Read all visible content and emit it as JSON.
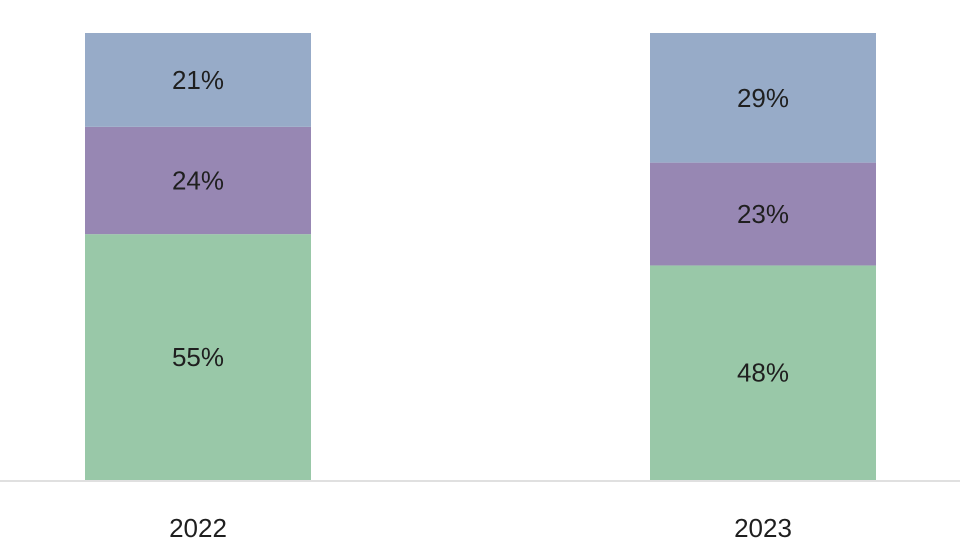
{
  "chart_data": {
    "type": "bar",
    "stacked": true,
    "categories": [
      "2022",
      "2023"
    ],
    "series": [
      {
        "values": [
          55,
          48
        ],
        "labels": [
          "55%",
          "48%"
        ],
        "color": "#99c8a8"
      },
      {
        "values": [
          24,
          23
        ],
        "labels": [
          "24%",
          "23%"
        ],
        "color": "#9787b3"
      },
      {
        "values": [
          21,
          29
        ],
        "labels": [
          "21%",
          "29%"
        ],
        "color": "#97abc8"
      }
    ],
    "unit": "%",
    "ylim": [
      0,
      100
    ],
    "grid": false,
    "legend": "none",
    "axis_color": "#e0e0e0"
  }
}
